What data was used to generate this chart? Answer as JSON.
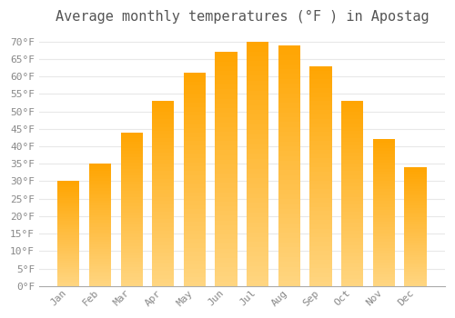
{
  "title": "Average monthly temperatures (°F ) in Apostag",
  "months": [
    "Jan",
    "Feb",
    "Mar",
    "Apr",
    "May",
    "Jun",
    "Jul",
    "Aug",
    "Sep",
    "Oct",
    "Nov",
    "Dec"
  ],
  "values": [
    30,
    35,
    44,
    53,
    61,
    67,
    70,
    69,
    63,
    53,
    42,
    34
  ],
  "bar_color": "#FFA500",
  "bar_color_light": "#FFD580",
  "ylim": [
    0,
    73
  ],
  "yticks": [
    0,
    5,
    10,
    15,
    20,
    25,
    30,
    35,
    40,
    45,
    50,
    55,
    60,
    65,
    70
  ],
  "background_color": "#FFFFFF",
  "grid_color": "#E8E8E8",
  "title_fontsize": 11,
  "tick_fontsize": 8,
  "title_color": "#555555",
  "tick_color": "#888888"
}
